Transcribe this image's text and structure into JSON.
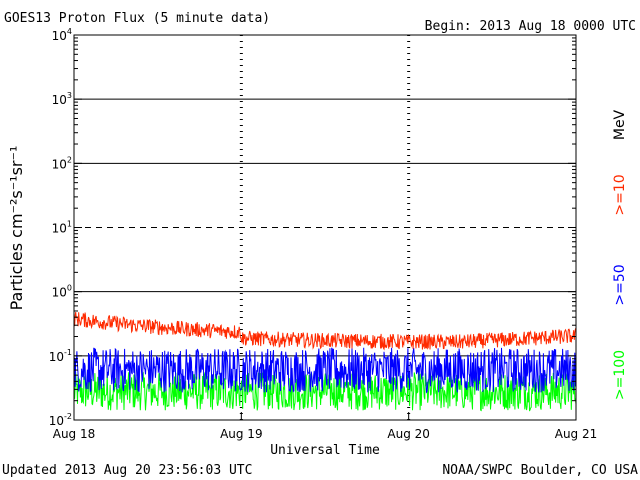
{
  "chart_data": {
    "type": "line",
    "title": "GOES13 Proton Flux (5 minute data)",
    "begin_label": "Begin: 2013 Aug 18 0000 UTC",
    "xlabel": "Universal Time",
    "ylabel": "Particles cm⁻²s⁻¹sr⁻¹",
    "units_label": "MeV",
    "x_ticks": [
      "Aug 18",
      "Aug 19",
      "Aug 20",
      "Aug 21"
    ],
    "x_range_days": [
      0,
      3
    ],
    "y_scale": "log",
    "ylim": [
      0.01,
      10000
    ],
    "y_ticks": [
      {
        "base": "10",
        "exp": "4"
      },
      {
        "base": "10",
        "exp": "3"
      },
      {
        "base": "10",
        "exp": "2"
      },
      {
        "base": "10",
        "exp": "1"
      },
      {
        "base": "10",
        "exp": "0"
      },
      {
        "base": "10",
        "exp": "-1"
      },
      {
        "base": "10",
        "exp": "-2"
      }
    ],
    "threshold_lines": [
      {
        "value": 1000,
        "style": "solid"
      },
      {
        "value": 100,
        "style": "solid"
      },
      {
        "value": 10,
        "style": "dashed"
      },
      {
        "value": 1,
        "style": "solid"
      },
      {
        "value": 0.1,
        "style": "solid"
      }
    ],
    "series": [
      {
        "name": ">=10",
        "color": "#ff2a00",
        "level": 0.2,
        "spread": 0.12
      },
      {
        "name": ">=50",
        "color": "#0000ff",
        "level": 0.06,
        "spread": 0.35
      },
      {
        "name": ">=100",
        "color": "#00ff00",
        "level": 0.028,
        "spread": 0.3
      }
    ]
  },
  "footer": {
    "updated": "Updated 2013 Aug 20 23:56:03 UTC",
    "source": "NOAA/SWPC Boulder, CO USA"
  },
  "colors": {
    "red": "#ff2a00",
    "blue": "#0000ff",
    "green": "#00ff00"
  }
}
